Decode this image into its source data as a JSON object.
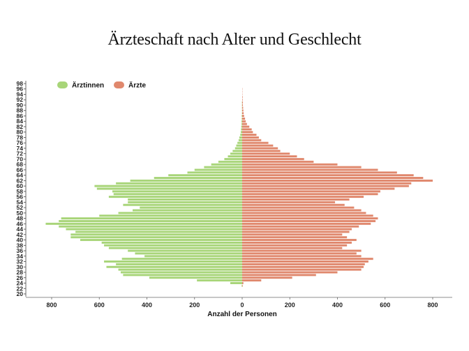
{
  "chart_data": {
    "type": "bar",
    "orientation": "horizontal-population-pyramid",
    "title": "Ärzteschaft nach Alter und Geschlecht",
    "xlabel": "Anzahl der Personen",
    "ylabel": "",
    "xlim": [
      -850,
      850
    ],
    "x_ticks": [
      -800,
      -600,
      -400,
      -200,
      0,
      200,
      400,
      600,
      800
    ],
    "x_tick_labels": [
      "800",
      "600",
      "400",
      "200",
      "0",
      "200",
      "400",
      "600",
      "800"
    ],
    "y_ticks": [
      20,
      22,
      24,
      26,
      28,
      30,
      32,
      34,
      36,
      38,
      40,
      42,
      44,
      46,
      48,
      50,
      52,
      54,
      56,
      58,
      60,
      62,
      64,
      66,
      68,
      70,
      72,
      74,
      76,
      78,
      80,
      82,
      84,
      86,
      88,
      90,
      92,
      94,
      96,
      98
    ],
    "grid": false,
    "legend_position": "top-left",
    "categories": [
      20,
      21,
      22,
      23,
      24,
      25,
      26,
      27,
      28,
      29,
      30,
      31,
      32,
      33,
      34,
      35,
      36,
      37,
      38,
      39,
      40,
      41,
      42,
      43,
      44,
      45,
      46,
      47,
      48,
      49,
      50,
      51,
      52,
      53,
      54,
      55,
      56,
      57,
      58,
      59,
      60,
      61,
      62,
      63,
      64,
      65,
      66,
      67,
      68,
      69,
      70,
      71,
      72,
      73,
      74,
      75,
      76,
      77,
      78,
      79,
      80,
      81,
      82,
      83,
      84,
      85,
      86,
      87,
      88,
      89,
      90,
      91,
      92,
      93,
      94,
      95,
      96,
      97,
      98
    ],
    "series": [
      {
        "name": "Ärztinnen",
        "color": "#a8d5797",
        "side": "left",
        "values": [
          0,
          0,
          0,
          2,
          50,
          190,
          390,
          500,
          510,
          520,
          570,
          530,
          580,
          505,
          410,
          450,
          480,
          560,
          580,
          590,
          680,
          720,
          720,
          700,
          740,
          770,
          825,
          770,
          760,
          600,
          520,
          460,
          430,
          500,
          480,
          480,
          560,
          540,
          545,
          610,
          620,
          530,
          470,
          370,
          310,
          230,
          200,
          160,
          130,
          100,
          75,
          60,
          50,
          40,
          30,
          25,
          20,
          15,
          12,
          8,
          6,
          5,
          4,
          3,
          3,
          2,
          2,
          1,
          1,
          1,
          1,
          1,
          0,
          0,
          0,
          0,
          0,
          0,
          0
        ]
      },
      {
        "name": "Ärzte",
        "color": "#e0886d",
        "side": "right",
        "values": [
          0,
          0,
          0,
          2,
          5,
          80,
          210,
          310,
          400,
          500,
          510,
          515,
          530,
          550,
          500,
          480,
          500,
          420,
          440,
          460,
          480,
          440,
          420,
          450,
          460,
          490,
          540,
          560,
          570,
          550,
          520,
          500,
          470,
          430,
          390,
          450,
          510,
          570,
          580,
          640,
          700,
          710,
          800,
          760,
          720,
          650,
          570,
          500,
          400,
          300,
          260,
          230,
          200,
          160,
          150,
          130,
          110,
          80,
          70,
          60,
          45,
          40,
          30,
          20,
          15,
          12,
          8,
          6,
          5,
          4,
          3,
          3,
          2,
          2,
          1,
          1,
          1,
          0,
          0
        ]
      }
    ]
  },
  "legend": {
    "items": [
      {
        "label": "Ärztinnen",
        "color": "#a8d579"
      },
      {
        "label": "Ärzte",
        "color": "#e0886d"
      }
    ]
  }
}
